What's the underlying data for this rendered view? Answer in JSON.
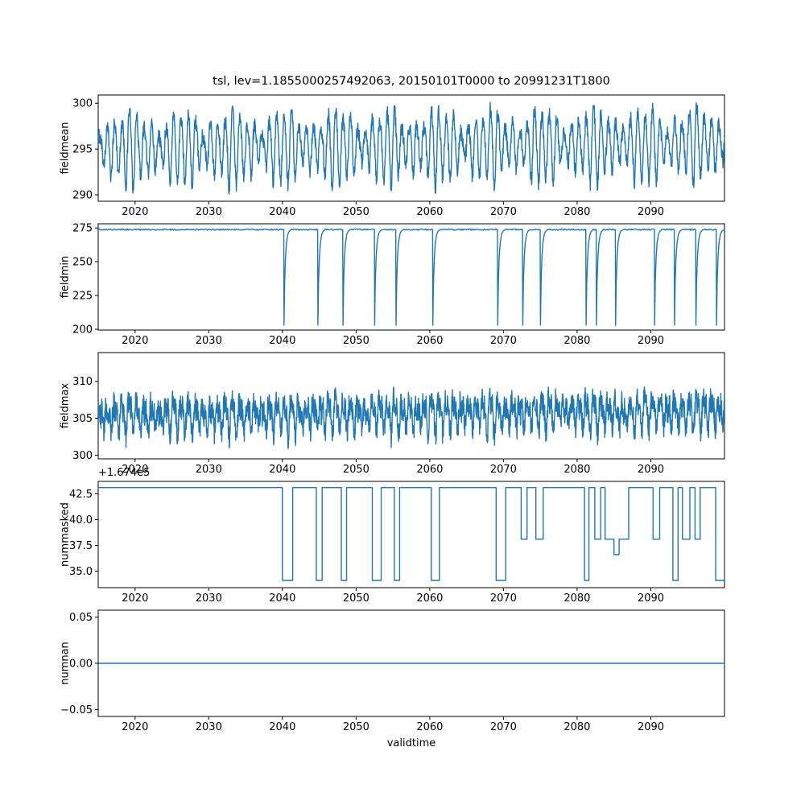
{
  "title": "tsl, lev=1.1855000257492063, 20150101T0000 to 20991231T1800",
  "xlabel": "validtime",
  "line_color": "#1f77b4",
  "x_axis": {
    "range": [
      2015,
      2100
    ],
    "ticks": [
      2020,
      2030,
      2040,
      2050,
      2060,
      2070,
      2080,
      2090
    ],
    "tick_labels": [
      "2020",
      "2030",
      "2040",
      "2050",
      "2060",
      "2070",
      "2080",
      "2090"
    ]
  },
  "chart_data": [
    {
      "type": "line",
      "name": "fieldmean",
      "ylabel": "fieldmean",
      "ylim": [
        289.3,
        300.9
      ],
      "yticks": [
        290,
        295,
        300
      ],
      "ytick_labels": [
        "290",
        "295",
        "300"
      ],
      "pattern": {
        "kind": "seasonal",
        "base": 295.1,
        "amplitude": 3.9,
        "harmonic2": 0.3,
        "noise": 0.9,
        "trend_per_year": 0.006,
        "points_per_year": 24
      }
    },
    {
      "type": "line",
      "name": "fieldmin",
      "ylabel": "fieldmin",
      "ylim": [
        199.4,
        278.1
      ],
      "yticks": [
        200,
        225,
        250,
        275
      ],
      "ytick_labels": [
        "200",
        "225",
        "250",
        "275"
      ],
      "pattern": {
        "kind": "baseline_dips",
        "baseline": 273.8,
        "noise": 0.45,
        "dip_depth": 203,
        "dip_width_years": 0.9,
        "dip_years": [
          2040.2,
          2044.8,
          2048.2,
          2052.5,
          2055.4,
          2060.4,
          2069.2,
          2072.6,
          2075.0,
          2081.2,
          2082.6,
          2085.2,
          2090.5,
          2093.2,
          2096.1,
          2098.9
        ]
      }
    },
    {
      "type": "line",
      "name": "fieldmax",
      "ylabel": "fieldmax",
      "ylim": [
        299.5,
        313.9
      ],
      "yticks": [
        300,
        305,
        310
      ],
      "ytick_labels": [
        "300",
        "305",
        "310"
      ],
      "pattern": {
        "kind": "seasonal",
        "base": 305.3,
        "amplitude": 2.1,
        "harmonic2": 0.9,
        "noise": 1.7,
        "trend_per_year": 0.008,
        "points_per_year": 30
      }
    },
    {
      "type": "line",
      "name": "nummasked",
      "ylabel": "nummasked",
      "offset_text": "+1.674e5",
      "ylim": [
        33.4,
        43.7
      ],
      "yticks": [
        35.0,
        37.5,
        40.0,
        42.5
      ],
      "ytick_labels": [
        "35.0",
        "37.5",
        "40.0",
        "42.5"
      ],
      "pattern": {
        "kind": "steps",
        "default_level": 43.1,
        "segments": [
          [
            2040.0,
            2041.4,
            34.1
          ],
          [
            2044.6,
            2045.4,
            34.1
          ],
          [
            2048.0,
            2048.7,
            34.1
          ],
          [
            2052.2,
            2053.4,
            34.1
          ],
          [
            2055.2,
            2055.9,
            34.1
          ],
          [
            2060.2,
            2061.3,
            34.1
          ],
          [
            2069.0,
            2070.3,
            34.1
          ],
          [
            2072.4,
            2073.2,
            38.1
          ],
          [
            2074.4,
            2075.4,
            38.1
          ],
          [
            2081.0,
            2081.6,
            34.1
          ],
          [
            2082.4,
            2083.2,
            38.1
          ],
          [
            2083.8,
            2085.0,
            38.1
          ],
          [
            2085.0,
            2085.7,
            36.6
          ],
          [
            2085.7,
            2087.0,
            38.1
          ],
          [
            2090.3,
            2091.2,
            38.1
          ],
          [
            2093.0,
            2093.7,
            34.1
          ],
          [
            2094.3,
            2095.3,
            38.1
          ],
          [
            2096.0,
            2096.7,
            38.1
          ],
          [
            2098.8,
            2100.6,
            34.1
          ]
        ]
      }
    },
    {
      "type": "line",
      "name": "numnan",
      "ylabel": "numnan",
      "ylim": [
        -0.0575,
        0.0575
      ],
      "yticks": [
        -0.05,
        0.0,
        0.05
      ],
      "ytick_labels": [
        "−0.05",
        "0.00",
        "0.05"
      ],
      "pattern": {
        "kind": "constant",
        "value": 0.0
      }
    }
  ]
}
